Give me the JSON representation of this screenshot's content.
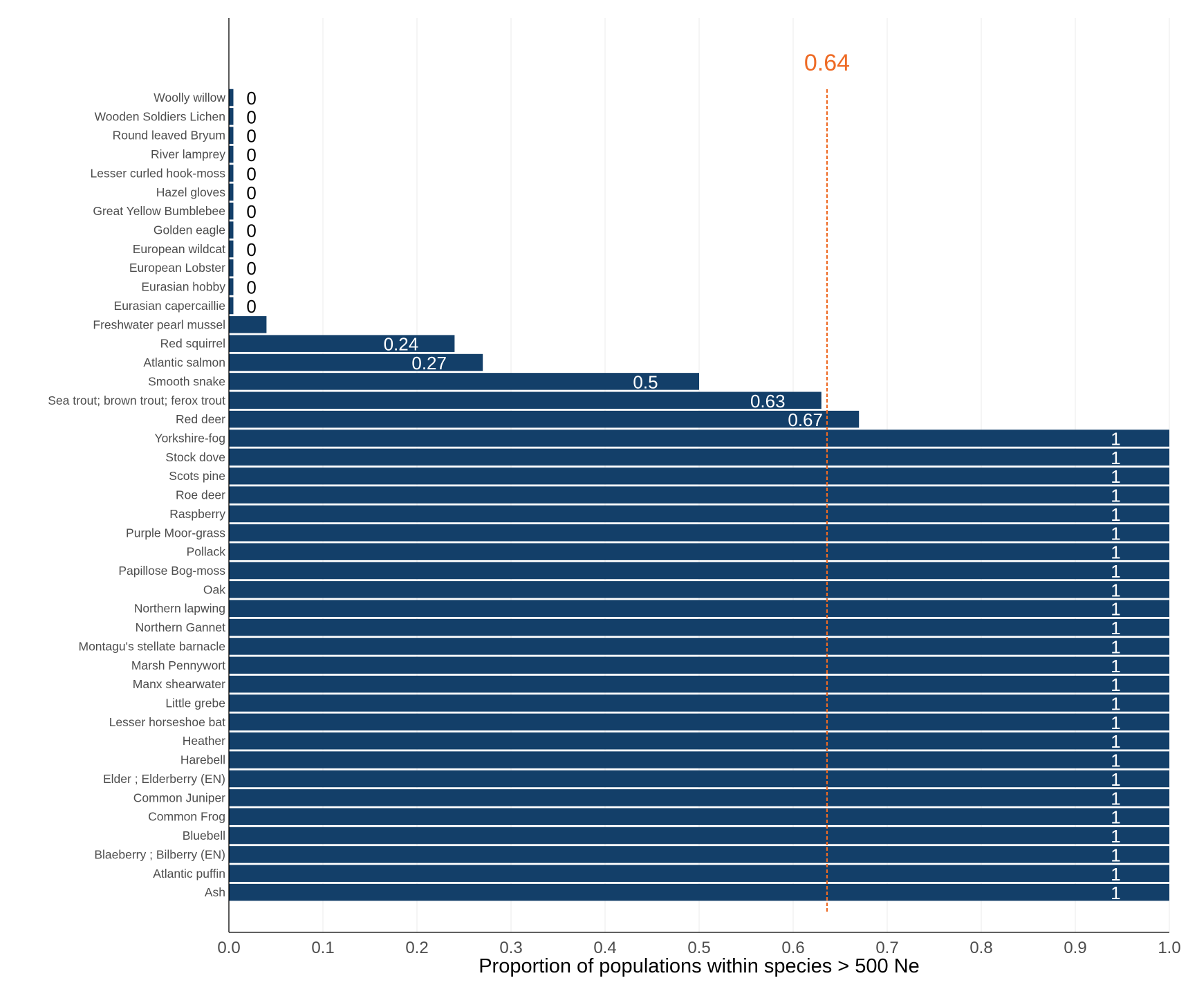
{
  "chart_data": {
    "type": "bar",
    "orientation": "horizontal",
    "title": "",
    "xlabel": "Proportion of populations within species > 500 Ne",
    "ylabel": "",
    "xlim": [
      0,
      1
    ],
    "xticks": [
      "0.0",
      "0.1",
      "0.2",
      "0.3",
      "0.4",
      "0.5",
      "0.6",
      "0.7",
      "0.8",
      "0.9",
      "1.0"
    ],
    "grid": "vertical",
    "bar_color": "#133f69",
    "reference_line": {
      "value": 0.636,
      "label": "0.64",
      "color": "#ee6a24",
      "style": "dashed"
    },
    "categories": [
      "Woolly willow",
      "Wooden Soldiers Lichen",
      "Round leaved Bryum",
      "River lamprey",
      "Lesser curled hook-moss",
      "Hazel gloves",
      "Great Yellow Bumblebee",
      "Golden eagle",
      "European wildcat",
      "European Lobster",
      "Eurasian hobby",
      "Eurasian capercaillie",
      "Freshwater pearl mussel",
      "Red squirrel",
      "Atlantic salmon",
      "Smooth snake",
      "Sea trout; brown trout; ferox trout",
      "Red deer",
      "Yorkshire-fog",
      "Stock dove",
      "Scots pine",
      "Roe deer",
      "Raspberry",
      "Purple Moor-grass",
      "Pollack",
      "Papillose Bog-moss",
      "Oak",
      "Northern lapwing",
      "Northern Gannet",
      "Montagu's stellate barnacle",
      "Marsh Pennywort",
      "Manx shearwater",
      "Little grebe",
      "Lesser horseshoe bat",
      "Heather",
      "Harebell",
      "Elder ; Elderberry (EN)",
      "Common Juniper",
      "Common Frog",
      "Bluebell",
      "Blaeberry ; Bilberry (EN)",
      "Atlantic puffin",
      "Ash"
    ],
    "values": [
      0,
      0,
      0,
      0,
      0,
      0,
      0,
      0,
      0,
      0,
      0,
      0,
      0.04,
      0.24,
      0.27,
      0.5,
      0.63,
      0.67,
      1,
      1,
      1,
      1,
      1,
      1,
      1,
      1,
      1,
      1,
      1,
      1,
      1,
      1,
      1,
      1,
      1,
      1,
      1,
      1,
      1,
      1,
      1,
      1,
      1
    ],
    "labels": [
      "0",
      "0",
      "0",
      "0",
      "0",
      "0",
      "0",
      "0",
      "0",
      "0",
      "0",
      "0",
      "",
      "0.24",
      "0.27",
      "0.5",
      "0.63",
      "0.67",
      "1",
      "1",
      "1",
      "1",
      "1",
      "1",
      "1",
      "1",
      "1",
      "1",
      "1",
      "1",
      "1",
      "1",
      "1",
      "1",
      "1",
      "1",
      "1",
      "1",
      "1",
      "1",
      "1",
      "1",
      "1"
    ]
  }
}
